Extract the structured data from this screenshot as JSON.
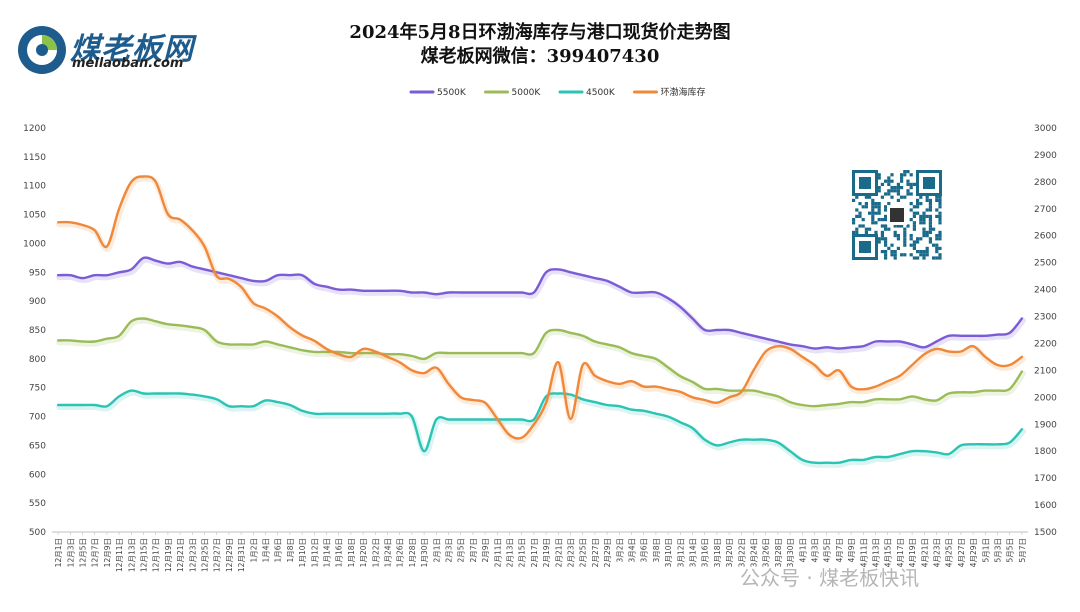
{
  "header": {
    "title_line1": "2024年5月8日环渤海库存与港口现货价走势图",
    "title_line2": "煤老板网微信：399407430"
  },
  "logo": {
    "name": "煤老板网",
    "url": "meilaoban.com",
    "brand_color": "#1f5c8e",
    "accent_color": "#8bc34a"
  },
  "watermark": {
    "text": "公众号 · 煤老板快讯"
  },
  "qr_code": {
    "icon": "qr-code-icon"
  },
  "chart_data": {
    "type": "line",
    "title": "2024年5月8日环渤海库存与港口现货价走势图",
    "left_axis": {
      "ylim": [
        500,
        1200
      ],
      "ticks": [
        500,
        550,
        600,
        650,
        700,
        750,
        800,
        850,
        900,
        950,
        1000,
        1050,
        1100,
        1150,
        1200
      ]
    },
    "right_axis": {
      "ylim": [
        1500,
        3000
      ],
      "ticks": [
        1500,
        1600,
        1700,
        1800,
        1900,
        2000,
        2100,
        2200,
        2300,
        2400,
        2500,
        2600,
        2700,
        2800,
        2900,
        3000
      ]
    },
    "legend_position": "top-center",
    "x_labels": [
      "12月1日",
      "12月3日",
      "12月5日",
      "12月7日",
      "12月9日",
      "12月11日",
      "12月13日",
      "12月15日",
      "12月17日",
      "12月19日",
      "12月21日",
      "12月23日",
      "12月25日",
      "12月27日",
      "12月29日",
      "12月31日",
      "1月2日",
      "1月4日",
      "1月6日",
      "1月8日",
      "1月10日",
      "1月12日",
      "1月14日",
      "1月16日",
      "1月18日",
      "1月20日",
      "1月22日",
      "1月24日",
      "1月26日",
      "1月28日",
      "1月30日",
      "2月1日",
      "2月3日",
      "2月5日",
      "2月7日",
      "2月9日",
      "2月11日",
      "2月13日",
      "2月15日",
      "2月17日",
      "2月19日",
      "2月21日",
      "2月23日",
      "2月25日",
      "2月27日",
      "2月29日",
      "3月2日",
      "3月4日",
      "3月6日",
      "3月8日",
      "3月10日",
      "3月12日",
      "3月14日",
      "3月16日",
      "3月18日",
      "3月20日",
      "3月22日",
      "3月24日",
      "3月26日",
      "3月28日",
      "3月30日",
      "4月1日",
      "4月3日",
      "4月5日",
      "4月7日",
      "4月9日",
      "4月11日",
      "4月13日",
      "4月15日",
      "4月17日",
      "4月19日",
      "4月21日",
      "4月23日",
      "4月25日",
      "4月27日",
      "4月29日",
      "5月1日",
      "5月3日",
      "5月5日",
      "5月7日"
    ],
    "series": [
      {
        "name": "5500K",
        "axis": "left",
        "color": "#7b5cd6",
        "values": [
          945,
          945,
          940,
          945,
          945,
          950,
          955,
          975,
          970,
          965,
          968,
          960,
          955,
          950,
          945,
          940,
          935,
          935,
          945,
          945,
          945,
          930,
          925,
          920,
          920,
          918,
          918,
          918,
          918,
          915,
          915,
          912,
          915,
          915,
          915,
          915,
          915,
          915,
          915,
          915,
          950,
          955,
          950,
          945,
          940,
          935,
          925,
          915,
          915,
          915,
          905,
          890,
          870,
          850,
          850,
          850,
          845,
          840,
          835,
          830,
          825,
          822,
          818,
          820,
          818,
          820,
          822,
          830,
          830,
          830,
          825,
          820,
          830,
          840,
          840,
          840,
          840,
          842,
          845,
          870
        ]
      },
      {
        "name": "5000K",
        "axis": "left",
        "color": "#9bbb59",
        "values": [
          832,
          832,
          830,
          830,
          835,
          840,
          865,
          870,
          865,
          860,
          858,
          855,
          850,
          830,
          825,
          825,
          825,
          830,
          825,
          820,
          815,
          812,
          812,
          812,
          810,
          810,
          810,
          808,
          808,
          805,
          800,
          810,
          810,
          810,
          810,
          810,
          810,
          810,
          810,
          810,
          845,
          850,
          845,
          840,
          830,
          825,
          820,
          810,
          805,
          800,
          785,
          770,
          760,
          748,
          748,
          745,
          745,
          745,
          740,
          735,
          725,
          720,
          718,
          720,
          722,
          725,
          725,
          730,
          730,
          730,
          735,
          730,
          728,
          740,
          742,
          742,
          745,
          745,
          748,
          778
        ]
      },
      {
        "name": "4500K",
        "axis": "left",
        "color": "#2bc4b4",
        "values": [
          720,
          720,
          720,
          720,
          718,
          735,
          745,
          740,
          740,
          740,
          740,
          738,
          735,
          730,
          718,
          718,
          718,
          728,
          725,
          720,
          710,
          705,
          705,
          705,
          705,
          705,
          705,
          705,
          705,
          700,
          640,
          695,
          695,
          695,
          695,
          695,
          695,
          695,
          695,
          695,
          735,
          740,
          738,
          730,
          725,
          720,
          718,
          712,
          710,
          705,
          700,
          690,
          680,
          660,
          650,
          655,
          660,
          660,
          660,
          655,
          640,
          625,
          620,
          620,
          620,
          625,
          625,
          630,
          630,
          635,
          640,
          640,
          638,
          635,
          650,
          652,
          652,
          652,
          655,
          678
        ]
      },
      {
        "name": "环渤海库存",
        "axis": "right",
        "color": "#f0883a",
        "values": [
          2650,
          2650,
          2640,
          2620,
          2560,
          2700,
          2800,
          2820,
          2800,
          2680,
          2660,
          2620,
          2560,
          2450,
          2440,
          2410,
          2350,
          2330,
          2300,
          2260,
          2230,
          2210,
          2180,
          2160,
          2150,
          2180,
          2170,
          2150,
          2130,
          2100,
          2090,
          2110,
          2050,
          2000,
          1990,
          1980,
          1920,
          1860,
          1850,
          1900,
          1980,
          2130,
          1920,
          2120,
          2080,
          2060,
          2050,
          2060,
          2040,
          2040,
          2030,
          2020,
          2000,
          1990,
          1980,
          2000,
          2020,
          2100,
          2170,
          2190,
          2180,
          2150,
          2120,
          2080,
          2100,
          2040,
          2030,
          2040,
          2060,
          2080,
          2120,
          2160,
          2180,
          2170,
          2170,
          2190,
          2150,
          2120,
          2120,
          2150
        ]
      }
    ]
  }
}
